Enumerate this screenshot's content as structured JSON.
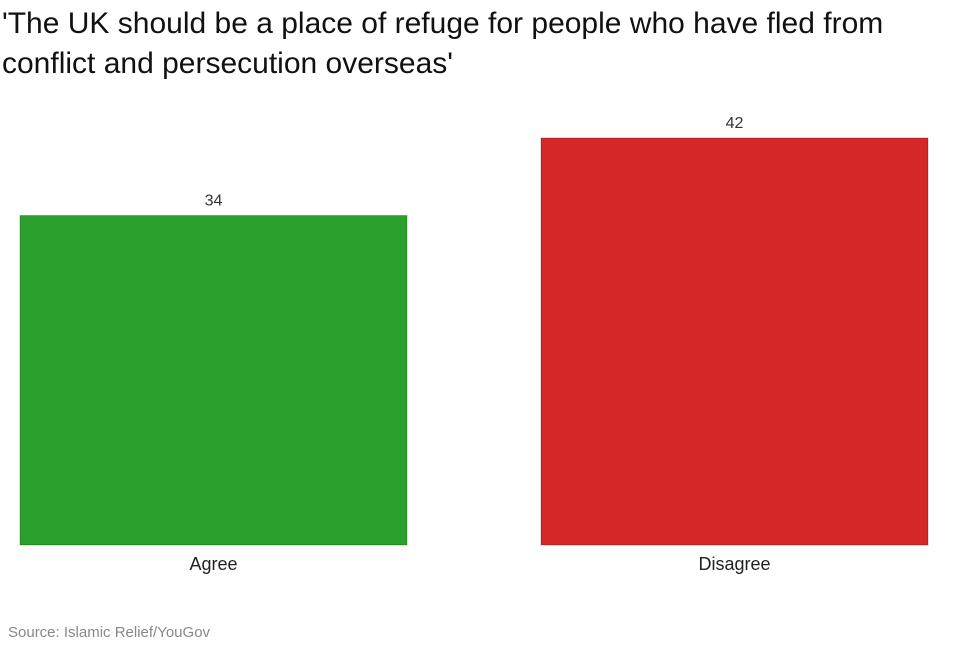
{
  "chart_data": {
    "type": "bar",
    "title": "'The UK should be a place of refuge for people who have fled from conflict and persecution overseas'",
    "categories": [
      "Agree",
      "Disagree"
    ],
    "values": [
      34,
      42
    ],
    "colors": [
      "#2ca02c",
      "#d62728"
    ],
    "source": "Source: Islamic Relief/YouGov"
  }
}
